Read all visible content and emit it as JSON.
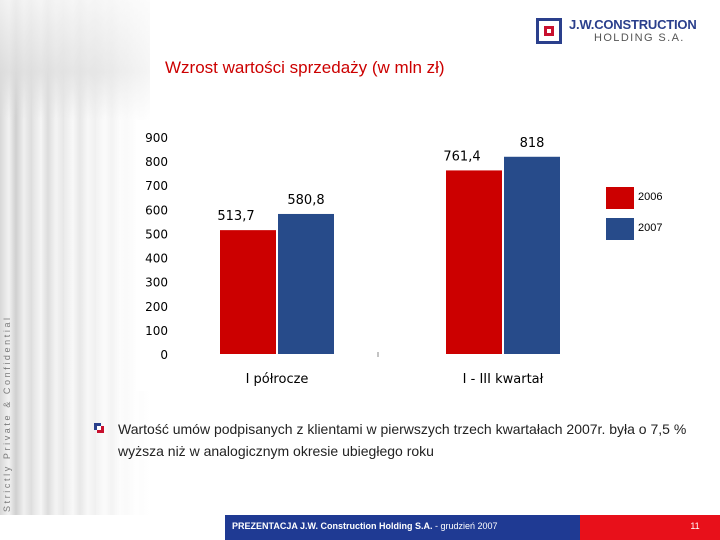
{
  "header": {
    "logo_line1": "J.W.CONSTRUCTION",
    "logo_line2": "HOLDING S.A."
  },
  "side_text": "Strictly Private & Confidential",
  "page_title": "Wzrost wartości sprzedaży (w mln zł)",
  "colors": {
    "series_2006": "#cc0000",
    "series_2007": "#274b8a",
    "footer_blue": "#1f3a93",
    "footer_red": "#e8101a",
    "title": "#cc0000"
  },
  "chart_data": {
    "type": "bar",
    "title": "",
    "xlabel": "",
    "ylabel": "",
    "categories": [
      "I półrocze",
      "I - III kwartał"
    ],
    "series": [
      {
        "name": "2006",
        "values": [
          513.7,
          761.4
        ],
        "labels": [
          "513,7",
          "761,4"
        ]
      },
      {
        "name": "2007",
        "values": [
          580.8,
          818
        ],
        "labels": [
          "580,8",
          "818"
        ]
      }
    ],
    "ylim": [
      0,
      900
    ],
    "yticks": [
      0,
      100,
      200,
      300,
      400,
      500,
      600,
      700,
      800,
      900
    ],
    "grid": false,
    "legend_position": "right"
  },
  "note": "Wartość umów podpisanych z klientami w pierwszych trzech kwartałach 2007r. była o 7,5 % wyższa niż w analogicznym okresie ubiegłego roku",
  "footer": {
    "brand": "PREZENTACJA J.W. Construction Holding S.A.",
    "date": " - grudzień 2007",
    "page": "11"
  }
}
